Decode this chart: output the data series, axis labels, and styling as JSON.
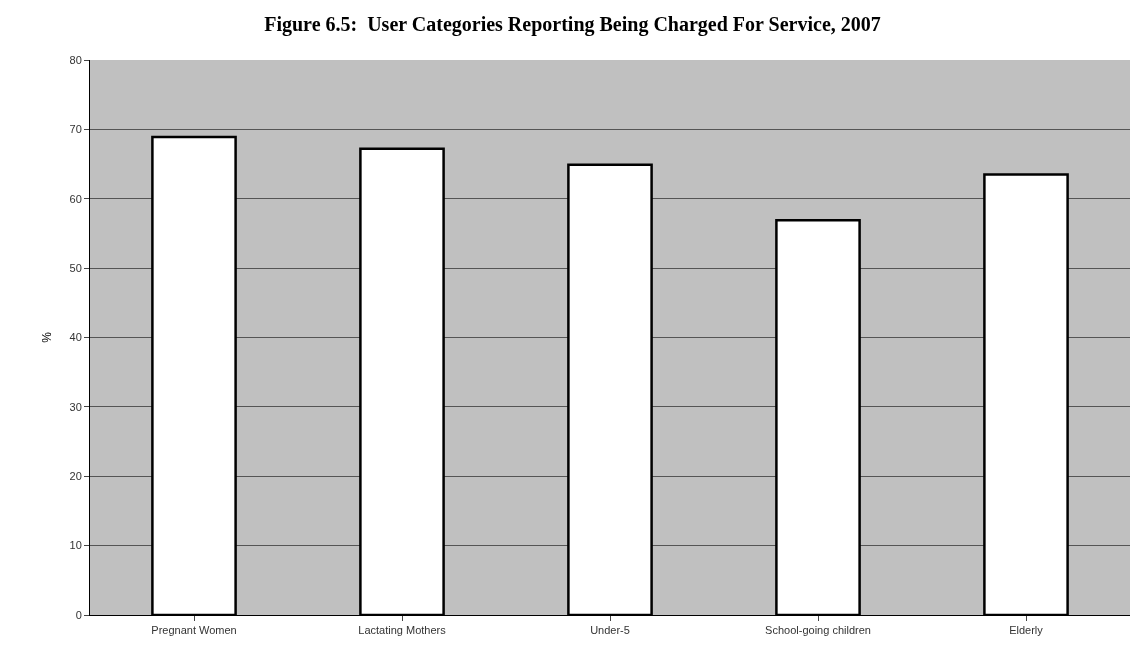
{
  "chart_data": {
    "type": "bar",
    "title": "Figure 6.5:  User Categories Reporting Being Charged For Service, 2007",
    "ylabel": "%",
    "categories": [
      "Pregnant Women",
      "Lactating Mothers",
      "Under-5",
      "School-going children",
      "Elderly"
    ],
    "values": [
      68.9,
      67.2,
      64.9,
      56.9,
      63.5
    ],
    "color": "#ffffff",
    "ylim": [
      0,
      80
    ],
    "yticks": [
      0,
      10,
      20,
      30,
      40,
      50,
      60,
      70,
      80
    ],
    "grid": "y"
  }
}
